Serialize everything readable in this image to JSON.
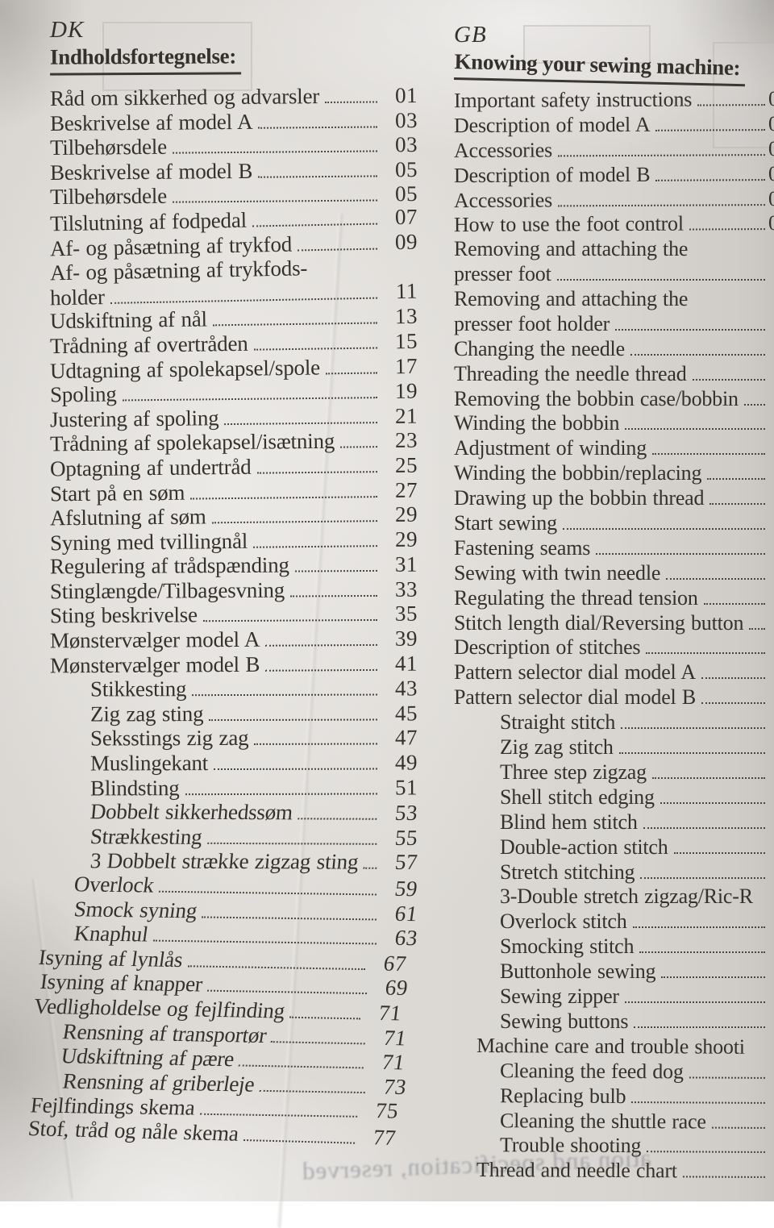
{
  "colors": {
    "paper": "#d9d6d2",
    "ink": "#34302c"
  },
  "left": {
    "lang": "DK",
    "title": "Indholdsfortegnelse:",
    "entries": [
      {
        "label": "Råd om sikkerhed og advarsler",
        "page": "01"
      },
      {
        "label": "Beskrivelse af model A",
        "page": "03"
      },
      {
        "label": "Tilbehørsdele",
        "page": "03"
      },
      {
        "label": "Beskrivelse af model B",
        "page": "05"
      },
      {
        "label": "Tilbehørsdele",
        "page": "05"
      },
      {
        "label": "Tilslutning af fodpedal",
        "page": "07"
      },
      {
        "label": "Af- og påsætning af trykfod",
        "page": "09"
      },
      {
        "label": "Af- og påsætning af trykfods-",
        "page": "",
        "dots": false
      },
      {
        "label": "holder",
        "page": "11"
      },
      {
        "label": "Udskiftning af nål",
        "page": "13"
      },
      {
        "label": "Trådning af overtråden",
        "page": "15"
      },
      {
        "label": "Udtagning af spolekapsel/spole",
        "page": "17"
      },
      {
        "label": "Spoling",
        "page": "19"
      },
      {
        "label": "Justering af spoling",
        "page": "21"
      },
      {
        "label": "Trådning af spolekapsel/isætning",
        "page": "23"
      },
      {
        "label": "Optagning af undertråd",
        "page": "25"
      },
      {
        "label": "Start på en søm",
        "page": "27"
      },
      {
        "label": "Afslutning af søm",
        "page": "29"
      },
      {
        "label": "Syning med tvillingnål",
        "page": "29"
      },
      {
        "label": "Regulering af trådspænding",
        "page": "31"
      },
      {
        "label": "Stinglængde/Tilbagesvning",
        "page": "33"
      },
      {
        "label": "Sting beskrivelse",
        "page": "35"
      },
      {
        "label": "Mønstervælger model A",
        "page": "39"
      },
      {
        "label": "Mønstervælger model B",
        "page": "41"
      },
      {
        "label": "Stikkesting",
        "page": "43",
        "indent": 2
      },
      {
        "label": "Zig zag sting",
        "page": "45",
        "indent": 2
      },
      {
        "label": "Seksstings zig zag",
        "page": "47",
        "indent": 2
      },
      {
        "label": "Muslingekant",
        "page": "49",
        "indent": 2
      },
      {
        "label": "Blindsting",
        "page": "51",
        "indent": 2
      },
      {
        "label": "Dobbelt sikkerhedssøm",
        "page": "53",
        "indent": 2
      },
      {
        "label": "Strækkesting",
        "page": "55",
        "indent": 2
      },
      {
        "label": "3 Dobbelt strække zigzag sting",
        "page": "57",
        "indent": 2
      },
      {
        "label": "Overlock",
        "page": "59",
        "indent": 1
      },
      {
        "label": "Smock syning",
        "page": "61",
        "indent": 1
      },
      {
        "label": "Knaphul",
        "page": "63",
        "indent": 1
      },
      {
        "label": "Isyning af lynlås",
        "page": "67"
      },
      {
        "label": "Isyning af knapper",
        "page": "69"
      },
      {
        "label": "Vedligholdelse og fejlfinding",
        "page": "71"
      },
      {
        "label": "Rensning af transportør",
        "page": "71",
        "indent": 1
      },
      {
        "label": "Udskiftning af pære",
        "page": "71",
        "indent": 1
      },
      {
        "label": "Rensning af griberleje",
        "page": "73",
        "indent": 1
      },
      {
        "label": "Fejlfindings skema",
        "page": "75"
      },
      {
        "label": "Stof, tråd og nåle skema",
        "page": "77"
      }
    ]
  },
  "right": {
    "lang": "GB",
    "title": "Knowing your sewing machine:",
    "entries": [
      {
        "label": "Important safety instructions",
        "page": "0"
      },
      {
        "label": "Description of model A",
        "page": "0"
      },
      {
        "label": "Accessories",
        "page": "0"
      },
      {
        "label": "Description of model B",
        "page": "0"
      },
      {
        "label": "Accessories",
        "page": "0"
      },
      {
        "label": "How to use the foot control",
        "page": "0"
      },
      {
        "label": "Removing and attaching the",
        "page": "",
        "dots": false
      },
      {
        "label": "presser foot",
        "page": ""
      },
      {
        "label": "Removing and attaching the",
        "page": "",
        "dots": false
      },
      {
        "label": "presser foot holder",
        "page": ""
      },
      {
        "label": "Changing the needle",
        "page": ""
      },
      {
        "label": "Threading the needle thread",
        "page": ""
      },
      {
        "label": "Removing the bobbin case/bobbin",
        "page": ""
      },
      {
        "label": "Winding the bobbin",
        "page": ""
      },
      {
        "label": "Adjustment of winding",
        "page": ""
      },
      {
        "label": "Winding the bobbin/replacing",
        "page": ""
      },
      {
        "label": "Drawing up the bobbin thread",
        "page": ""
      },
      {
        "label": "Start sewing",
        "page": ""
      },
      {
        "label": "Fastening seams",
        "page": ""
      },
      {
        "label": "Sewing with twin needle",
        "page": ""
      },
      {
        "label": "Regulating the thread tension",
        "page": ""
      },
      {
        "label": "Stitch length dial/Reversing button",
        "page": ""
      },
      {
        "label": "Description of stitches",
        "page": ""
      },
      {
        "label": "Pattern selector dial model A",
        "page": ""
      },
      {
        "label": "Pattern selector dial model B",
        "page": ""
      },
      {
        "label": "Straight stitch",
        "page": "",
        "indent": 2
      },
      {
        "label": "Zig zag stitch",
        "page": "",
        "indent": 2
      },
      {
        "label": "Three step zigzag",
        "page": "",
        "indent": 2
      },
      {
        "label": "Shell stitch edging",
        "page": "",
        "indent": 2
      },
      {
        "label": "Blind hem stitch",
        "page": "",
        "indent": 2
      },
      {
        "label": "Double-action stitch",
        "page": "",
        "indent": 2
      },
      {
        "label": "Stretch stitching",
        "page": "",
        "indent": 2
      },
      {
        "label": "3-Double stretch zigzag/Ric-R",
        "page": "",
        "indent": 2,
        "dots": false
      },
      {
        "label": "Overlock stitch",
        "page": "",
        "indent": 2
      },
      {
        "label": "Smocking stitch",
        "page": "",
        "indent": 2
      },
      {
        "label": "Buttonhole sewing",
        "page": "",
        "indent": 2
      },
      {
        "label": "Sewing zipper",
        "page": "",
        "indent": 2
      },
      {
        "label": "Sewing buttons",
        "page": "",
        "indent": 2
      },
      {
        "label": "Machine care and trouble shooti",
        "page": "",
        "indent": "M",
        "dots": false
      },
      {
        "label": "Cleaning the feed dog",
        "page": "",
        "indent": 2
      },
      {
        "label": "Replacing bulb",
        "page": "",
        "indent": 2
      },
      {
        "label": "Cleaning the shuttle race",
        "page": "",
        "indent": 2
      },
      {
        "label": "Trouble shooting",
        "page": "",
        "indent": 2
      },
      {
        "label": "Thread and needle chart",
        "page": "",
        "indent": "M"
      }
    ]
  },
  "bleedthrough": "ation and specification, reserved"
}
